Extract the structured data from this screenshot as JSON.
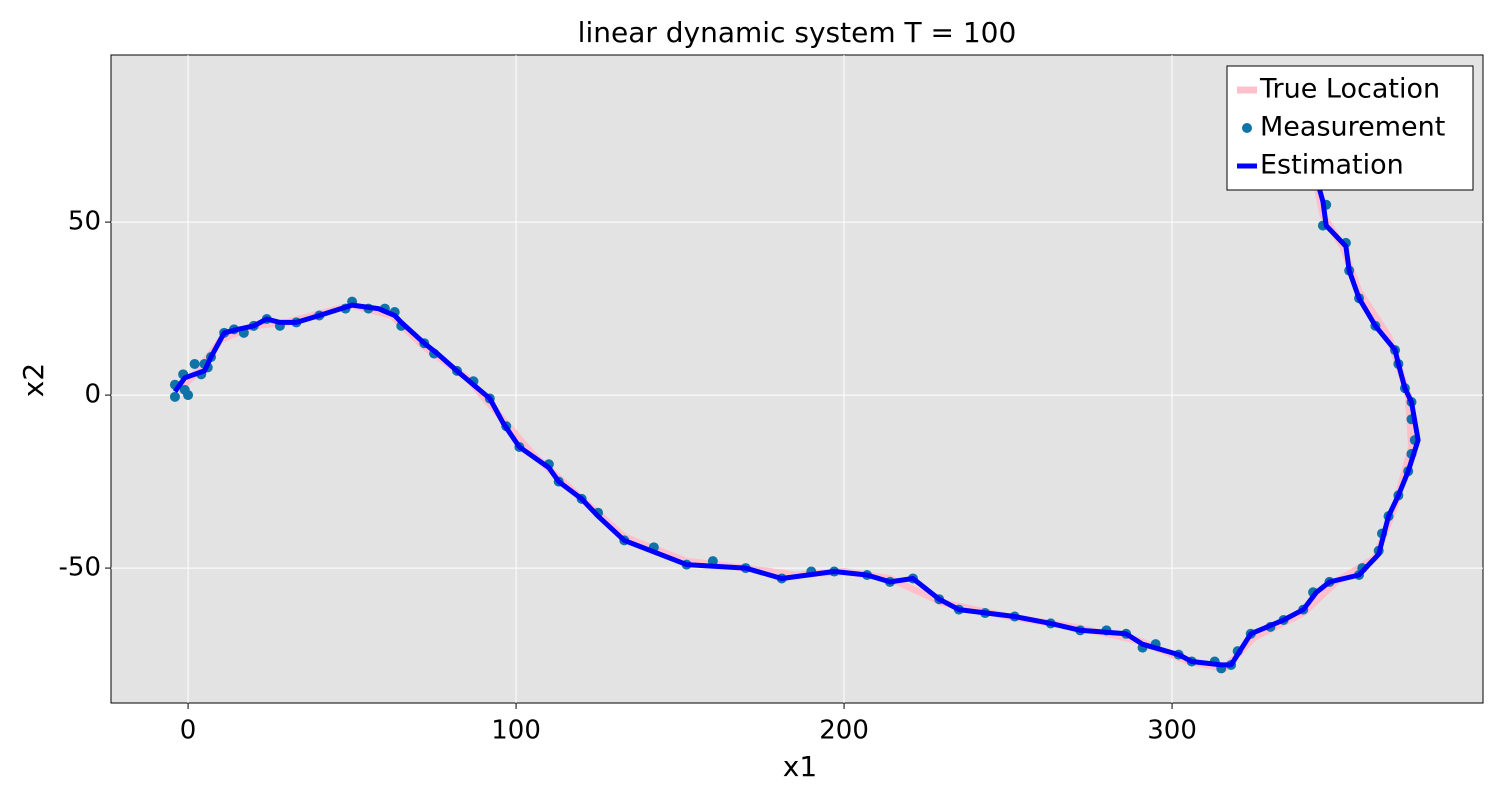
{
  "chart_data": {
    "type": "line",
    "title": "linear dynamic system T = 100",
    "x_label": "x1",
    "y_label": "x2",
    "xlim": [
      -23.5,
      394.8
    ],
    "ylim": [
      -89,
      98.3
    ],
    "xticks": [
      0,
      100,
      200,
      300
    ],
    "yticks": [
      -50,
      0,
      50
    ],
    "grid": true,
    "legend": "top-right",
    "background": "#e3e3e3",
    "series": [
      {
        "name": "True Location",
        "color": "#ffc0cb",
        "style": "line",
        "x": [
          -3,
          3,
          10,
          20,
          30,
          50,
          62,
          72,
          85,
          95,
          105,
          120,
          133,
          152,
          170,
          185,
          200,
          214,
          230,
          250,
          270,
          290,
          305,
          316,
          325,
          340,
          350,
          362,
          368,
          373,
          372,
          366,
          357,
          352,
          346,
          343
        ],
        "values": [
          1,
          7,
          16,
          20,
          21,
          26,
          23,
          14,
          5,
          -6,
          -17,
          -30,
          -41,
          -48,
          -50,
          -52,
          -51,
          -53,
          -60,
          -64,
          -67,
          -71,
          -77,
          -79,
          -70,
          -63,
          -54,
          -47,
          -32,
          -15,
          0,
          17,
          30,
          43,
          52,
          66
        ]
      },
      {
        "name": "Measurement",
        "color": "#0f73a8",
        "style": "scatter",
        "x": [
          -4,
          -4,
          -1.5,
          -1,
          0,
          2,
          4,
          5,
          6,
          7,
          11,
          14,
          17,
          20,
          24,
          28,
          33,
          40,
          48,
          50,
          55,
          60,
          63,
          65,
          72,
          75,
          82,
          87,
          92,
          97,
          101,
          110,
          113,
          120,
          125,
          133,
          142,
          152,
          160,
          170,
          181,
          190,
          197,
          207,
          214,
          221,
          229,
          235,
          243,
          252,
          263,
          272,
          280,
          286,
          291,
          295,
          302,
          306,
          313,
          315,
          318,
          320,
          324,
          330,
          334,
          340,
          343,
          348,
          357,
          358,
          363,
          364,
          366,
          369,
          372,
          373,
          374,
          373,
          373,
          371,
          369,
          368,
          362,
          357,
          354,
          353,
          346,
          347,
          343
        ],
        "values": [
          -0.5,
          3,
          6,
          1.5,
          0,
          9,
          6,
          9,
          8,
          11,
          18,
          19,
          18,
          20,
          22,
          20,
          21,
          23,
          25,
          27,
          25,
          25,
          24,
          20,
          15,
          12,
          7,
          4,
          -1,
          -9,
          -15,
          -20,
          -25,
          -30,
          -34,
          -42,
          -44,
          -49,
          -48,
          -50,
          -53,
          -51,
          -51,
          -52,
          -54,
          -53,
          -59,
          -62,
          -63,
          -64,
          -66,
          -68,
          -68,
          -69,
          -73,
          -72,
          -75,
          -77,
          -77,
          -79,
          -78,
          -74,
          -69,
          -67,
          -65,
          -62,
          -57,
          -54,
          -52,
          -50,
          -45,
          -40,
          -35,
          -29,
          -22,
          -17,
          -13,
          -7,
          -2,
          2,
          9,
          13,
          20,
          28,
          36,
          44,
          49,
          55,
          66
        ]
      },
      {
        "name": "Estimation",
        "color": "#0000ff",
        "style": "line",
        "x": [
          -4,
          -1,
          2,
          5,
          7,
          11,
          15,
          20,
          24,
          28,
          33,
          40,
          50,
          58,
          63,
          65,
          72,
          76,
          82,
          87,
          92,
          96,
          101,
          110,
          113,
          120,
          125,
          133,
          152,
          170,
          181,
          197,
          207,
          214,
          221,
          229,
          235,
          252,
          263,
          272,
          286,
          291,
          302,
          306,
          315,
          318,
          324,
          334,
          340,
          344,
          348,
          357,
          363,
          366,
          369,
          372,
          375,
          373,
          371,
          369,
          368,
          362,
          357,
          354,
          353,
          347,
          346,
          343
        ],
        "values": [
          1,
          5,
          6,
          7,
          11,
          18,
          19,
          20,
          22,
          21,
          21,
          23,
          26,
          25,
          23,
          21,
          15,
          12,
          7,
          3,
          -1,
          -8,
          -15,
          -21,
          -25,
          -30,
          -35,
          -42,
          -49,
          -50,
          -53,
          -51,
          -52,
          -54,
          -53,
          -59,
          -62,
          -64,
          -66,
          -68,
          -69,
          -72,
          -75,
          -77,
          -78,
          -78,
          -69,
          -65,
          -62,
          -57,
          -54,
          -52,
          -46,
          -35,
          -29,
          -22,
          -13,
          -2,
          2,
          9,
          13,
          20,
          28,
          36,
          43,
          49,
          56,
          66
        ]
      }
    ]
  }
}
